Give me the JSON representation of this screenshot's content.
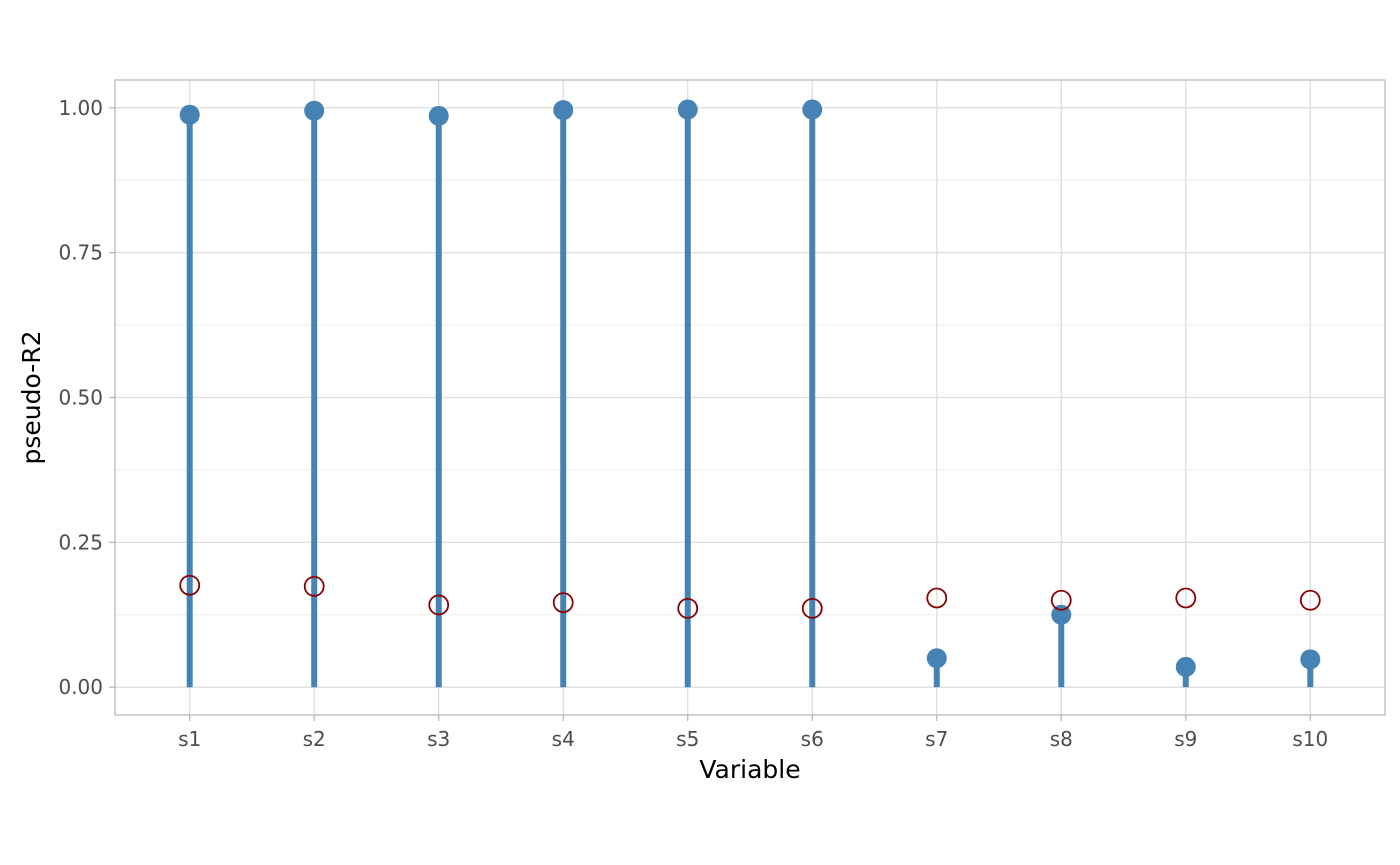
{
  "chart_data": {
    "type": "lollipop",
    "xlabel": "Variable",
    "ylabel": "pseudo-R2",
    "ylim": [
      -0.048,
      1.048
    ],
    "yticks": [
      0.0,
      0.25,
      0.5,
      0.75,
      1.0
    ],
    "ytick_labels": [
      "0.00",
      "0.25",
      "0.50",
      "0.75",
      "1.00"
    ],
    "categories": [
      "s1",
      "s2",
      "s3",
      "s4",
      "s5",
      "s6",
      "s7",
      "s8",
      "s9",
      "s10"
    ],
    "series": [
      {
        "marker": "filled-circle-with-stem",
        "color": "#4682B4",
        "values": [
          0.988,
          0.995,
          0.986,
          0.996,
          0.997,
          0.997,
          0.05,
          0.125,
          0.035,
          0.048
        ]
      },
      {
        "marker": "open-circle",
        "color": "#8B0000",
        "values": [
          0.176,
          0.174,
          0.142,
          0.146,
          0.136,
          0.136,
          0.154,
          0.15,
          0.154,
          0.15
        ]
      }
    ],
    "grid": true,
    "legend": "none"
  }
}
